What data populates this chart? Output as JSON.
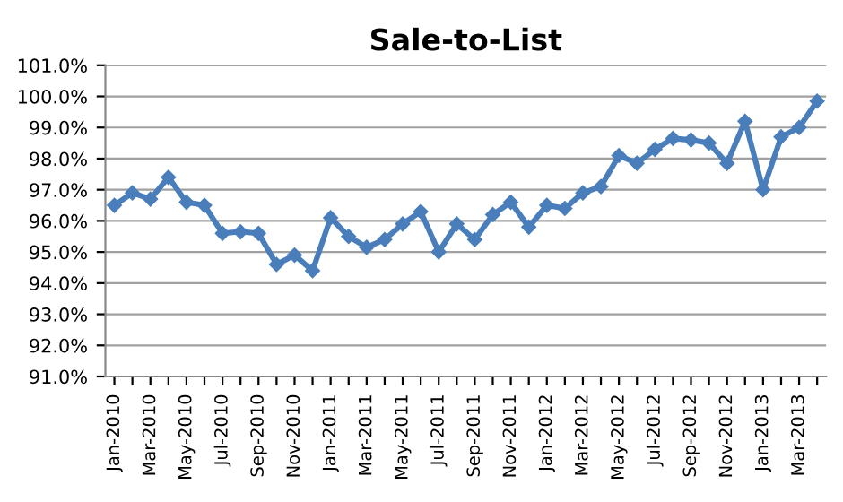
{
  "chart_data": {
    "type": "line",
    "title": "Sale-to-List",
    "categories": [
      "Jan-2010",
      null,
      "Mar-2010",
      null,
      "May-2010",
      null,
      "Jul-2010",
      null,
      "Sep-2010",
      null,
      "Nov-2010",
      null,
      "Jan-2011",
      null,
      "Mar-2011",
      null,
      "May-2011",
      null,
      "Jul-2011",
      null,
      "Sep-2011",
      null,
      "Nov-2011",
      null,
      "Jan-2012",
      null,
      "Mar-2012",
      null,
      "May-2012",
      null,
      "Jul-2012",
      null,
      "Sep-2012",
      null,
      "Nov-2012",
      null,
      "Jan-2013",
      null,
      "Mar-2013",
      null
    ],
    "series": [
      {
        "color": "#4a7ebb",
        "values": [
          96.5,
          96.9,
          96.7,
          97.4,
          96.6,
          96.5,
          95.6,
          95.65,
          95.6,
          94.6,
          94.9,
          94.4,
          96.1,
          95.5,
          95.15,
          95.4,
          95.9,
          96.3,
          95.0,
          95.9,
          95.4,
          96.2,
          96.6,
          95.8,
          96.5,
          96.4,
          96.9,
          97.1,
          98.1,
          97.85,
          98.3,
          98.65,
          98.6,
          98.5,
          97.85,
          99.2,
          97.0,
          98.7,
          99.0,
          99.85
        ]
      }
    ],
    "ylim": [
      91,
      101
    ],
    "yticks": [
      {
        "value": 91,
        "label": "91.0%"
      },
      {
        "value": 92,
        "label": "92.0%"
      },
      {
        "value": 93,
        "label": "93.0%"
      },
      {
        "value": 94,
        "label": "94.0%"
      },
      {
        "value": 95,
        "label": "95.0%"
      },
      {
        "value": 96,
        "label": "96.0%"
      },
      {
        "value": 97,
        "label": "97.0%"
      },
      {
        "value": 98,
        "label": "98.0%"
      },
      {
        "value": 99,
        "label": "99.0%"
      },
      {
        "value": 100,
        "label": "100.0%"
      },
      {
        "value": 101,
        "label": "101.0%"
      }
    ],
    "grid": "y",
    "marker": "diamond",
    "line_style": "solid"
  }
}
